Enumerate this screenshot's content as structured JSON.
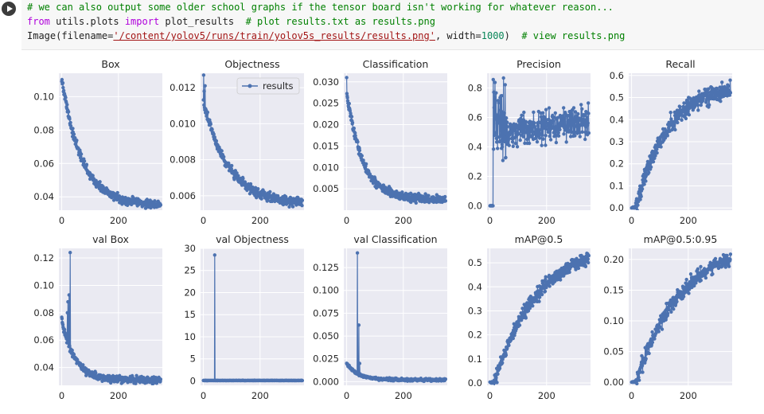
{
  "code_cell": {
    "comment_line": "# we can also output some older school graphs if the tensor board isn't working for whatever reason...",
    "line2": {
      "kw_from": "from",
      "module": " utils.plots ",
      "kw_import": "import",
      "name": " plot_results  ",
      "comment": "# plot results.txt as results.png"
    },
    "line3": {
      "prefix": "Image(filename=",
      "string": "'/content/yolov5/runs/train/yolov5s_results/results.png'",
      "mid": ", width=",
      "number": "1000",
      "suffix": ")  ",
      "comment": "# view results.png"
    }
  },
  "colors": {
    "line": "#4c72b0",
    "panel_bg": "#eaeaf2",
    "tick_text": "#262626",
    "comment": "#008000",
    "keyword": "#af00db",
    "string": "#a31515",
    "number": "#098658"
  },
  "chart_data": [
    {
      "type": "line",
      "title": "Box",
      "xticks": [
        0,
        200
      ],
      "yticks": [
        0.04,
        0.06,
        0.08,
        0.1
      ],
      "ytick_labels": [
        "0.04",
        "0.06",
        "0.08",
        "0.10"
      ],
      "xlim": [
        -10,
        355
      ],
      "ylim": [
        0.032,
        0.114
      ],
      "shape": "decay",
      "y_start": 0.111,
      "y_end": 0.035,
      "tau": 70,
      "noise": 0.0022,
      "series": [
        {
          "name": "results"
        }
      ],
      "legend": false
    },
    {
      "type": "line",
      "title": "Objectness",
      "xticks": [
        0,
        200
      ],
      "yticks": [
        0.006,
        0.008,
        0.01,
        0.012
      ],
      "ytick_labels": [
        "0.006",
        "0.008",
        "0.010",
        "0.012"
      ],
      "xlim": [
        -10,
        355
      ],
      "ylim": [
        0.0052,
        0.0128
      ],
      "shape": "decay",
      "y_start": 0.0112,
      "y_end": 0.0055,
      "tau": 90,
      "noise": 0.00022,
      "spikes": [
        [
          1,
          0.0127
        ],
        [
          3,
          0.0118
        ],
        [
          6,
          0.0121
        ]
      ],
      "series": [
        {
          "name": "results"
        }
      ],
      "legend": true
    },
    {
      "type": "line",
      "title": "Classification",
      "xticks": [
        0,
        200
      ],
      "yticks": [
        0.005,
        0.01,
        0.015,
        0.02,
        0.025,
        0.03
      ],
      "ytick_labels": [
        "0.005",
        "0.010",
        "0.015",
        "0.020",
        "0.025",
        "0.030"
      ],
      "xlim": [
        -10,
        355
      ],
      "ylim": [
        0.0,
        0.032
      ],
      "shape": "decay",
      "y_start": 0.028,
      "y_end": 0.0025,
      "tau": 55,
      "noise": 0.0009,
      "spikes": [
        [
          0,
          0.031
        ]
      ],
      "series": [
        {
          "name": "results"
        }
      ],
      "legend": false
    },
    {
      "type": "line",
      "title": "Precision",
      "xticks": [
        0,
        200
      ],
      "yticks": [
        0,
        0.2,
        0.4,
        0.6,
        0.8
      ],
      "ytick_labels": [
        "0.0",
        "0.2",
        "0.4",
        "0.6",
        "0.8"
      ],
      "xlim": [
        -10,
        355
      ],
      "ylim": [
        -0.03,
        0.9
      ],
      "shape": "precision",
      "y_start": 0.0,
      "y_end": 0.62,
      "tau": 60,
      "noise": 0.09,
      "series": [
        {
          "name": "results"
        }
      ],
      "legend": false
    },
    {
      "type": "line",
      "title": "Recall",
      "xticks": [
        0,
        200
      ],
      "yticks": [
        0,
        0.1,
        0.2,
        0.3,
        0.4,
        0.5,
        0.6
      ],
      "ytick_labels": [
        "0.0",
        "0.1",
        "0.2",
        "0.3",
        "0.4",
        "0.5",
        "0.6"
      ],
      "xlim": [
        -10,
        355
      ],
      "ylim": [
        -0.01,
        0.61
      ],
      "shape": "growth",
      "y_start": 0.0,
      "y_end": 0.56,
      "tau": 110,
      "noise": 0.035,
      "series": [
        {
          "name": "results"
        }
      ],
      "legend": false
    },
    {
      "type": "line",
      "title": "val Box",
      "xticks": [
        0,
        200
      ],
      "yticks": [
        0.04,
        0.06,
        0.08,
        0.1,
        0.12
      ],
      "ytick_labels": [
        "0.04",
        "0.06",
        "0.08",
        "0.10",
        "0.12"
      ],
      "xlim": [
        -10,
        355
      ],
      "ylim": [
        0.027,
        0.127
      ],
      "shape": "decay",
      "y_start": 0.075,
      "y_end": 0.031,
      "tau": 45,
      "noise": 0.0022,
      "spikes": [
        [
          30,
          0.124
        ],
        [
          26,
          0.093
        ],
        [
          22,
          0.088
        ],
        [
          20,
          0.08
        ]
      ],
      "series": [
        {
          "name": "results"
        }
      ],
      "legend": false
    },
    {
      "type": "line",
      "title": "val Objectness",
      "xticks": [
        0,
        200
      ],
      "yticks": [
        0,
        5,
        10,
        15,
        20,
        25,
        30
      ],
      "ytick_labels": [
        "0",
        "5",
        "10",
        "15",
        "20",
        "25",
        "30"
      ],
      "xlim": [
        -10,
        355
      ],
      "ylim": [
        -1,
        30
      ],
      "shape": "flat",
      "y_start": 0.1,
      "y_end": 0.1,
      "tau": 50,
      "noise": 0.03,
      "spikes": [
        [
          40,
          28.5
        ]
      ],
      "series": [
        {
          "name": "results"
        }
      ],
      "legend": false
    },
    {
      "type": "line",
      "title": "val Classification",
      "xticks": [
        0,
        200
      ],
      "yticks": [
        0,
        0.025,
        0.05,
        0.075,
        0.1,
        0.125
      ],
      "ytick_labels": [
        "0.000",
        "0.025",
        "0.050",
        "0.075",
        "0.100",
        "0.125"
      ],
      "xlim": [
        -10,
        355
      ],
      "ylim": [
        -0.004,
        0.146
      ],
      "shape": "decay",
      "y_start": 0.02,
      "y_end": 0.002,
      "tau": 40,
      "noise": 0.0012,
      "spikes": [
        [
          38,
          0.141
        ],
        [
          43,
          0.062
        ],
        [
          46,
          0.02
        ]
      ],
      "series": [
        {
          "name": "results"
        }
      ],
      "legend": false
    },
    {
      "type": "line",
      "title": "mAP@0.5",
      "xticks": [
        0,
        200
      ],
      "yticks": [
        0,
        0.1,
        0.2,
        0.3,
        0.4,
        0.5
      ],
      "ytick_labels": [
        "0.0",
        "0.1",
        "0.2",
        "0.3",
        "0.4",
        "0.5"
      ],
      "xlim": [
        -10,
        355
      ],
      "ylim": [
        -0.01,
        0.56
      ],
      "shape": "growth",
      "y_start": 0.0,
      "y_end": 0.58,
      "tau": 150,
      "noise": 0.025,
      "series": [
        {
          "name": "results"
        }
      ],
      "legend": false
    },
    {
      "type": "line",
      "title": "mAP@0.5:0.95",
      "xticks": [
        0,
        200
      ],
      "yticks": [
        0,
        0.05,
        0.1,
        0.15,
        0.2
      ],
      "ytick_labels": [
        "0.00",
        "0.05",
        "0.10",
        "0.15",
        "0.20"
      ],
      "xlim": [
        -10,
        355
      ],
      "ylim": [
        -0.005,
        0.218
      ],
      "shape": "growth",
      "y_start": 0.0,
      "y_end": 0.23,
      "tau": 160,
      "noise": 0.01,
      "series": [
        {
          "name": "results"
        }
      ],
      "legend": false
    }
  ]
}
